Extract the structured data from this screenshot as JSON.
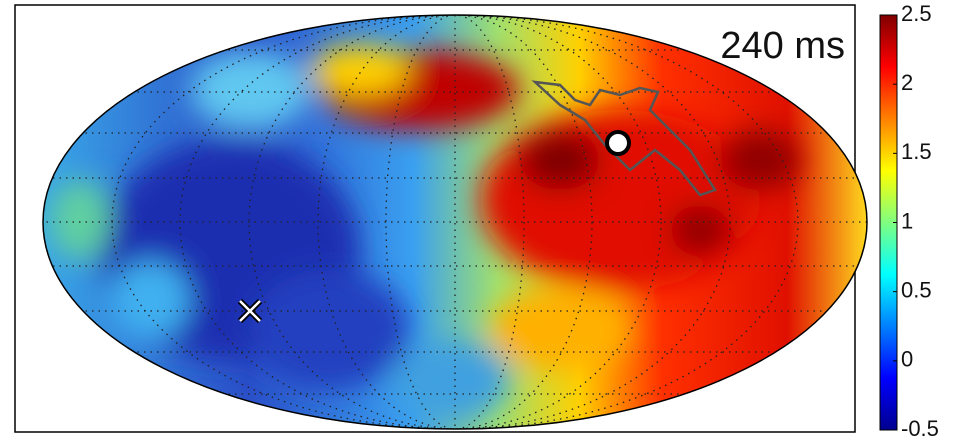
{
  "chart_data": {
    "type": "heatmap",
    "title": "240 ms",
    "colormap": [
      "#00008f",
      "#0000ff",
      "#0080ff",
      "#00ffff",
      "#80ff80",
      "#ffff00",
      "#ff8000",
      "#ff0000",
      "#800000"
    ],
    "clim": [
      -0.5,
      2.5
    ],
    "cticks": [
      -0.5,
      0,
      0.5,
      1,
      1.5,
      2,
      2.5
    ]
  }
}
